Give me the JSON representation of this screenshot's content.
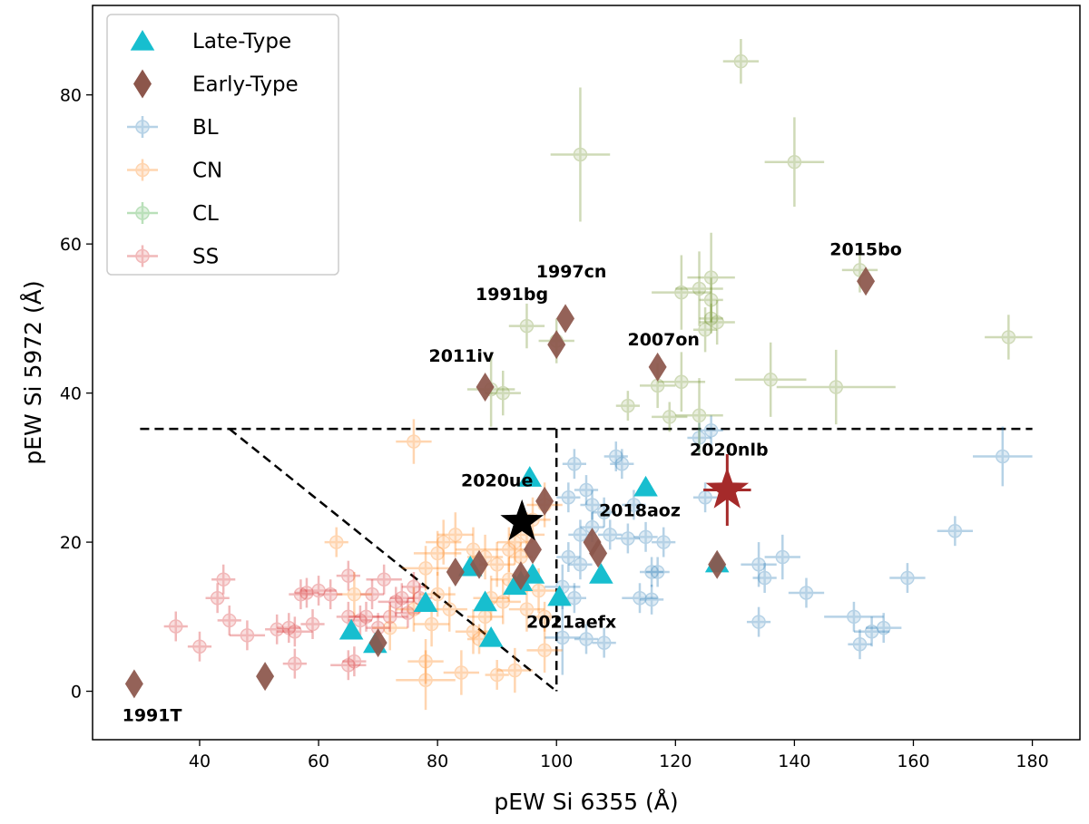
{
  "chart_data": {
    "type": "scatter",
    "xlabel": "pEW Si 6355 (Å)",
    "ylabel": "pEW Si 5972 (Å)",
    "xlim": [
      22,
      188
    ],
    "ylim": [
      -6.5,
      92
    ],
    "xticks": [
      40,
      60,
      80,
      100,
      120,
      140,
      160,
      180
    ],
    "yticks": [
      0,
      20,
      40,
      60,
      80
    ],
    "grid": false,
    "legend_position": "top-left",
    "legend": [
      {
        "label": "Late-Type",
        "marker": "triangle",
        "color": "#17becf"
      },
      {
        "label": "Early-Type",
        "marker": "diamond",
        "color": "#8c564b"
      },
      {
        "label": "BL",
        "marker": "circle",
        "color": "#1f77b4"
      },
      {
        "label": "CN",
        "marker": "circle",
        "color": "#ff7f0e"
      },
      {
        "label": "CL",
        "marker": "circle",
        "color": "#2ca02c"
      },
      {
        "label": "SS",
        "marker": "circle",
        "color": "#d62728"
      }
    ],
    "boundaries": [
      {
        "name": "horizontal",
        "points": [
          [
            30,
            35.2
          ],
          [
            180,
            35.2
          ]
        ]
      },
      {
        "name": "vertical",
        "points": [
          [
            100,
            35.2
          ],
          [
            100,
            0
          ]
        ]
      },
      {
        "name": "diagonal",
        "points": [
          [
            45,
            35.2
          ],
          [
            100,
            0
          ]
        ]
      }
    ],
    "series": [
      {
        "name": "BL",
        "color": "#1f77b4",
        "points": [
          [
            103,
            30.5,
            2,
            2
          ],
          [
            105,
            27,
            2,
            2
          ],
          [
            106,
            25,
            2,
            2
          ],
          [
            104,
            21,
            2,
            2
          ],
          [
            106,
            22,
            2,
            2
          ],
          [
            104,
            17,
            2,
            2
          ],
          [
            103,
            12.5,
            2,
            2
          ],
          [
            110,
            31.5,
            2,
            2
          ],
          [
            111,
            30.5,
            2,
            2
          ],
          [
            113,
            25,
            2,
            2
          ],
          [
            112,
            20.5,
            2,
            2
          ],
          [
            115,
            20.7,
            2,
            2
          ],
          [
            116,
            16,
            2,
            2
          ],
          [
            117,
            16,
            2,
            2
          ],
          [
            118,
            20,
            2,
            2
          ],
          [
            108,
            6.5,
            2,
            2
          ],
          [
            105,
            7,
            2,
            2
          ],
          [
            114,
            12.5,
            3,
            2
          ],
          [
            116,
            12.3,
            2,
            2
          ],
          [
            101,
            7.2,
            3,
            5
          ],
          [
            101,
            14,
            3,
            3
          ],
          [
            102,
            18,
            2,
            2
          ],
          [
            125,
            26,
            2,
            2
          ],
          [
            126,
            35,
            2,
            2
          ],
          [
            124,
            34,
            2,
            2
          ],
          [
            134,
            17,
            3,
            3
          ],
          [
            135,
            15.2,
            2,
            2
          ],
          [
            138,
            18,
            3,
            3
          ],
          [
            142,
            13.2,
            3,
            2
          ],
          [
            134,
            9.3,
            2,
            2
          ],
          [
            150,
            10,
            5,
            2
          ],
          [
            151,
            6.3,
            2,
            2
          ],
          [
            153,
            8,
            3,
            2
          ],
          [
            155,
            8.5,
            3,
            2
          ],
          [
            159,
            15.2,
            3,
            2
          ],
          [
            167,
            21.5,
            3,
            2
          ],
          [
            175,
            31.5,
            5,
            4
          ],
          [
            109,
            21,
            2,
            2
          ],
          [
            108,
            24,
            2,
            2
          ],
          [
            102,
            26,
            2,
            2
          ]
        ]
      },
      {
        "name": "CN",
        "color": "#ff7f0e",
        "points": [
          [
            76,
            33.5,
            3,
            3
          ],
          [
            63,
            20,
            2,
            2
          ],
          [
            78,
            16.5,
            4,
            3
          ],
          [
            80,
            18.5,
            4,
            3
          ],
          [
            81,
            20,
            3,
            3
          ],
          [
            83,
            21,
            3,
            3
          ],
          [
            86,
            19,
            3,
            3
          ],
          [
            88,
            18,
            3,
            3
          ],
          [
            90,
            17,
            3,
            3
          ],
          [
            92,
            19,
            3,
            3
          ],
          [
            93,
            20,
            3,
            3
          ],
          [
            95,
            21,
            3,
            3
          ],
          [
            96,
            23,
            3,
            3
          ],
          [
            98,
            25,
            3,
            3
          ],
          [
            91,
            12,
            3,
            3
          ],
          [
            92,
            15,
            3,
            3
          ],
          [
            89,
            12.5,
            3,
            3
          ],
          [
            80,
            13,
            3,
            3
          ],
          [
            78,
            4,
            3,
            3
          ],
          [
            78,
            1.5,
            5,
            4
          ],
          [
            84,
            2.5,
            3,
            3
          ],
          [
            90,
            2.2,
            2,
            2
          ],
          [
            93,
            2.8,
            3,
            3
          ],
          [
            98,
            5.5,
            3,
            3
          ],
          [
            86,
            8,
            3,
            3
          ],
          [
            88,
            10,
            3,
            3
          ],
          [
            95,
            11,
            3,
            3
          ],
          [
            97,
            13.5,
            3,
            3
          ],
          [
            79,
            9,
            3,
            3
          ],
          [
            82,
            11,
            3,
            3
          ],
          [
            66,
            13,
            3,
            3
          ],
          [
            72,
            8.5,
            3,
            3
          ],
          [
            76,
            11,
            3,
            3
          ],
          [
            87,
            7,
            2,
            2
          ],
          [
            98,
            10,
            2,
            2
          ],
          [
            94,
            18,
            2,
            2
          ]
        ]
      },
      {
        "name": "CL",
        "color": "#6b8e23",
        "points": [
          [
            131,
            84.5,
            3,
            3
          ],
          [
            104,
            72,
            5,
            9
          ],
          [
            140,
            71,
            5,
            6
          ],
          [
            151,
            56.5,
            3,
            3
          ],
          [
            176,
            47.5,
            4,
            3
          ],
          [
            126,
            55.5,
            4,
            6
          ],
          [
            124,
            54,
            4,
            5
          ],
          [
            121,
            53.5,
            5,
            5
          ],
          [
            126,
            52.5,
            2,
            3
          ],
          [
            126,
            50,
            2,
            2
          ],
          [
            127,
            49.5,
            3,
            3
          ],
          [
            125,
            48.5,
            2,
            3
          ],
          [
            95,
            49,
            3,
            3
          ],
          [
            100,
            47,
            3,
            3
          ],
          [
            121,
            41.5,
            4,
            4
          ],
          [
            117,
            41,
            3,
            3
          ],
          [
            112,
            38.3,
            2,
            2
          ],
          [
            119,
            36.8,
            3,
            2
          ],
          [
            124,
            37,
            4,
            5
          ],
          [
            136,
            41.8,
            6,
            5
          ],
          [
            147,
            40.8,
            10,
            5
          ],
          [
            89,
            40.5,
            4,
            5
          ],
          [
            91,
            40,
            3,
            3
          ]
        ]
      },
      {
        "name": "SS",
        "color": "#d62728",
        "points": [
          [
            36,
            8.7,
            2,
            2
          ],
          [
            40,
            6,
            2,
            2
          ],
          [
            43,
            12.5,
            2,
            2
          ],
          [
            44,
            15,
            2,
            2
          ],
          [
            45,
            9.5,
            2,
            2
          ],
          [
            48,
            7.5,
            3,
            2
          ],
          [
            53,
            8.3,
            2,
            2
          ],
          [
            55,
            8.5,
            2,
            2
          ],
          [
            56,
            3.7,
            2,
            2
          ],
          [
            56,
            8,
            3,
            2
          ],
          [
            57,
            13,
            2,
            2
          ],
          [
            58,
            13.2,
            2,
            2
          ],
          [
            59,
            9,
            2,
            2
          ],
          [
            60,
            13.5,
            3,
            2
          ],
          [
            62,
            13,
            2,
            2
          ],
          [
            65,
            15.5,
            2,
            2
          ],
          [
            65,
            10,
            2,
            2
          ],
          [
            65,
            3.5,
            3,
            2
          ],
          [
            66,
            4,
            2,
            2
          ],
          [
            67,
            9.5,
            2,
            2
          ],
          [
            68,
            10,
            3,
            2
          ],
          [
            69,
            13,
            2,
            2
          ],
          [
            70,
            8.5,
            2,
            2
          ],
          [
            71,
            15,
            3,
            2
          ],
          [
            72,
            10,
            3,
            2
          ],
          [
            73,
            12,
            3,
            2
          ],
          [
            74,
            12.5,
            2,
            2
          ],
          [
            75,
            10.5,
            2,
            2
          ],
          [
            76,
            14,
            2,
            2
          ],
          [
            77,
            12.5,
            2,
            2
          ]
        ]
      },
      {
        "name": "Late-Type",
        "color": "#17becf",
        "marker": "triangle",
        "points": [
          [
            95.5,
            28.5
          ],
          [
            115,
            27.2
          ],
          [
            107.5,
            15.5
          ],
          [
            96,
            15.5
          ],
          [
            94,
            14.5
          ],
          [
            93,
            14
          ],
          [
            85.5,
            16.5
          ],
          [
            88,
            11.8
          ],
          [
            89,
            7
          ],
          [
            78,
            11.7
          ],
          [
            65.5,
            8
          ],
          [
            69.5,
            6.2
          ],
          [
            100.5,
            12.5
          ],
          [
            127,
            17
          ]
        ]
      },
      {
        "name": "Early-Type",
        "color": "#8c564b",
        "marker": "diamond",
        "points": [
          [
            29,
            1
          ],
          [
            51,
            2
          ],
          [
            70,
            6.5
          ],
          [
            83,
            16
          ],
          [
            87,
            17
          ],
          [
            94,
            15.5
          ],
          [
            96,
            19
          ],
          [
            98,
            25.5
          ],
          [
            106,
            20
          ],
          [
            107,
            18.5
          ],
          [
            127,
            17
          ],
          [
            88,
            40.8
          ],
          [
            100,
            46.5
          ],
          [
            101.5,
            50
          ],
          [
            117,
            43.5
          ],
          [
            152,
            55
          ]
        ]
      },
      {
        "name": "2020ue",
        "color": "#000000",
        "marker": "star",
        "points": [
          [
            94.2,
            22.7
          ]
        ]
      },
      {
        "name": "2020nlb",
        "color": "#a52a2a",
        "marker": "star",
        "points": [
          [
            128.7,
            27,
            4,
            4.8
          ]
        ]
      }
    ],
    "annotations": [
      {
        "text": "1991T",
        "x": 32,
        "y": -4
      },
      {
        "text": "2011iv",
        "x": 84,
        "y": 44.2
      },
      {
        "text": "1991bg",
        "x": 92.5,
        "y": 52.5
      },
      {
        "text": "1997cn",
        "x": 102.5,
        "y": 55.5
      },
      {
        "text": "2007on",
        "x": 118,
        "y": 46.4
      },
      {
        "text": "2015bo",
        "x": 152,
        "y": 58.5
      },
      {
        "text": "2020nlb",
        "x": 129,
        "y": 31.6
      },
      {
        "text": "2020ue",
        "x": 90,
        "y": 27.5
      },
      {
        "text": "2018aoz",
        "x": 114,
        "y": 23.5
      },
      {
        "text": "2021aefx",
        "x": 102.5,
        "y": 8.5
      }
    ]
  }
}
